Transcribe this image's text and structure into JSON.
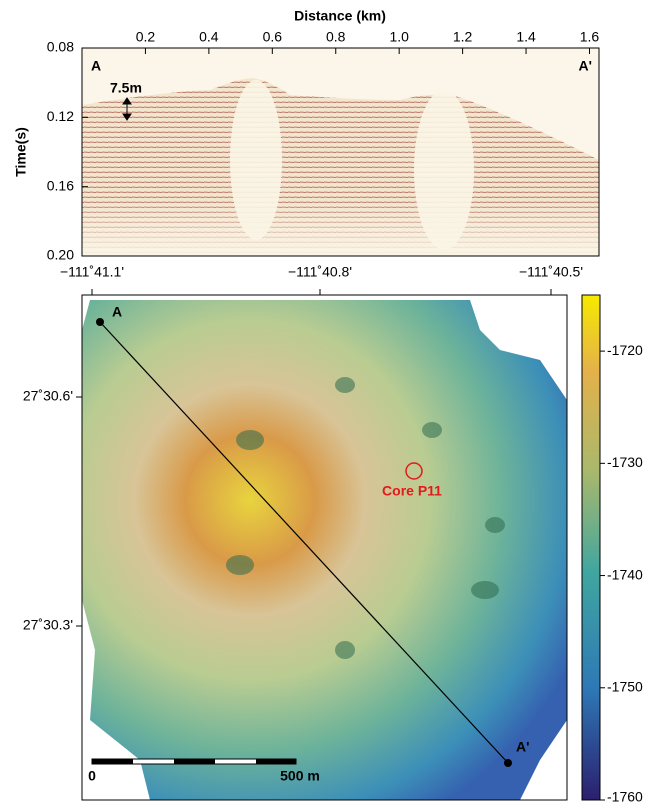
{
  "profile": {
    "title": "Distance (km)",
    "ylabel": "Time(s)",
    "xlim": [
      0,
      1.63
    ],
    "xticks": [
      0.2,
      0.4,
      0.6,
      0.8,
      {
        "value": 1,
        "label": "1.0"
      },
      1.2,
      1.4,
      1.6
    ],
    "ylim": [
      0.08,
      0.2
    ],
    "yticks": [
      0.08,
      0.12,
      0.16,
      {
        "value": 0.2,
        "label": "0.20"
      }
    ],
    "start_label": "A",
    "end_label": "A'",
    "annotation": "7.5m"
  },
  "map": {
    "lon_ticks": [
      "−111˚41.1'",
      "−111˚40.8'",
      "−111˚40.5'"
    ],
    "lat_ticks": [
      "27˚30.6'",
      "27˚30.3'"
    ],
    "start_label": "A",
    "end_label": "A'",
    "core_label": "Core P11",
    "scale_start": "0",
    "scale_end": "500 m"
  },
  "colorbar": {
    "lim": [
      -1760,
      -1715
    ],
    "ticks": [
      -1720,
      -1730,
      -1740,
      -1750,
      -1760
    ]
  }
}
